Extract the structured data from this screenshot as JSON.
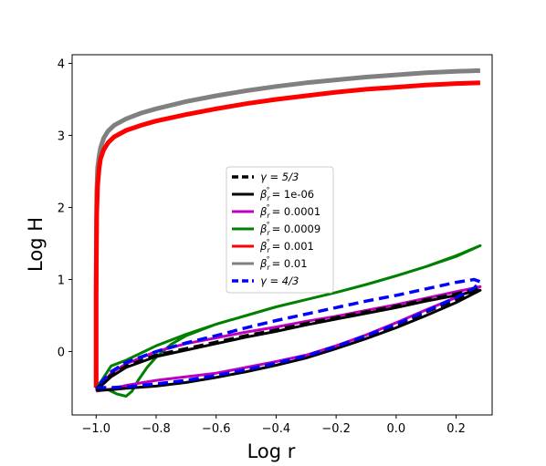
{
  "chart_data": {
    "type": "line",
    "xlabel": "Log r",
    "ylabel": "Log H",
    "xlim": [
      -1.08,
      0.32
    ],
    "ylim": [
      -0.88,
      4.12
    ],
    "xticks": [
      -1.0,
      -0.8,
      -0.6,
      -0.4,
      -0.2,
      0.0,
      0.2
    ],
    "xtick_labels": [
      "−1.0",
      "−0.8",
      "−0.6",
      "−0.4",
      "−0.2",
      "0.0",
      "0.2"
    ],
    "yticks": [
      0,
      1,
      2,
      3,
      4
    ],
    "ytick_labels": [
      "0",
      "1",
      "2",
      "3",
      "4"
    ],
    "grid": false,
    "legend_position": "center",
    "series": [
      {
        "name": "γ = 5/3",
        "legend_label": "γ = 5/3",
        "color": "#000000",
        "dashed": true,
        "x": [
          -1.0,
          -0.95,
          -0.9,
          -0.8,
          -0.7,
          -0.6,
          -0.5,
          -0.4,
          -0.3,
          -0.2,
          -0.1,
          0.0,
          0.1,
          0.2,
          0.28,
          0.2,
          0.1,
          0.0,
          -0.1,
          -0.2,
          -0.3,
          -0.4,
          -0.5,
          -0.6,
          -0.7,
          -0.8,
          -0.9,
          -0.95,
          -1.0
        ],
        "y": [
          -0.52,
          -0.52,
          -0.5,
          -0.47,
          -0.42,
          -0.35,
          -0.27,
          -0.18,
          -0.08,
          0.05,
          0.2,
          0.35,
          0.55,
          0.72,
          0.88,
          0.8,
          0.72,
          0.63,
          0.55,
          0.47,
          0.39,
          0.3,
          0.22,
          0.13,
          0.04,
          -0.05,
          -0.2,
          -0.33,
          -0.52
        ]
      },
      {
        "name": "β_r° = 1e-06",
        "legend_label": "= 1e-06",
        "color": "#000000",
        "dashed": false,
        "x": [
          -1.0,
          -0.95,
          -0.9,
          -0.8,
          -0.7,
          -0.6,
          -0.5,
          -0.4,
          -0.3,
          -0.2,
          -0.1,
          0.0,
          0.1,
          0.2,
          0.28,
          0.2,
          0.1,
          0.0,
          -0.1,
          -0.2,
          -0.3,
          -0.4,
          -0.5,
          -0.6,
          -0.7,
          -0.8,
          -0.9,
          -0.95,
          -1.0
        ],
        "y": [
          -0.54,
          -0.53,
          -0.51,
          -0.48,
          -0.43,
          -0.36,
          -0.28,
          -0.19,
          -0.09,
          0.04,
          0.18,
          0.33,
          0.5,
          0.68,
          0.85,
          0.78,
          0.7,
          0.61,
          0.53,
          0.45,
          0.37,
          0.28,
          0.2,
          0.11,
          0.02,
          -0.07,
          -0.22,
          -0.35,
          -0.54
        ]
      },
      {
        "name": "β_r° = 0.0001",
        "legend_label": "= 0.0001",
        "color": "#bf00bf",
        "dashed": false,
        "x": [
          -1.0,
          -0.95,
          -0.9,
          -0.8,
          -0.7,
          -0.6,
          -0.5,
          -0.4,
          -0.3,
          -0.2,
          -0.1,
          0.0,
          0.1,
          0.2,
          0.28,
          0.2,
          0.1,
          0.0,
          -0.1,
          -0.2,
          -0.3,
          -0.4,
          -0.5,
          -0.6,
          -0.7,
          -0.8,
          -0.9,
          -0.95,
          -1.0
        ],
        "y": [
          -0.55,
          -0.52,
          -0.47,
          -0.4,
          -0.35,
          -0.3,
          -0.22,
          -0.14,
          -0.05,
          0.08,
          0.23,
          0.4,
          0.58,
          0.75,
          0.9,
          0.83,
          0.74,
          0.65,
          0.57,
          0.49,
          0.42,
          0.34,
          0.27,
          0.19,
          0.11,
          0.0,
          -0.17,
          -0.3,
          -0.55
        ]
      },
      {
        "name": "β_r° = 0.0009",
        "legend_label": "= 0.0009",
        "color": "#008000",
        "dashed": false,
        "x": [
          -1.0,
          -0.96,
          -0.93,
          -0.9,
          -0.88,
          -0.86,
          -0.83,
          -0.8,
          -0.75,
          -0.7,
          -0.6,
          -0.5,
          -0.4,
          -0.3,
          -0.2,
          -0.1,
          0.0,
          0.1,
          0.2,
          0.28,
          0.2,
          0.1,
          0.0,
          -0.1,
          -0.2,
          -0.3,
          -0.4,
          -0.5,
          -0.6,
          -0.7,
          -0.8,
          -0.9,
          -0.95,
          -1.0
        ],
        "y": [
          -0.52,
          -0.53,
          -0.59,
          -0.62,
          -0.55,
          -0.4,
          -0.22,
          -0.08,
          0.1,
          0.22,
          0.38,
          0.5,
          0.62,
          0.72,
          0.82,
          0.93,
          1.05,
          1.18,
          1.32,
          1.47,
          1.33,
          1.18,
          1.05,
          0.93,
          0.82,
          0.72,
          0.62,
          0.5,
          0.38,
          0.24,
          0.08,
          -0.12,
          -0.2,
          -0.52
        ]
      },
      {
        "name": "β_r° = 0.001",
        "legend_label": "= 0.001",
        "color": "#ff0000",
        "dashed": false,
        "x": [
          -1.0,
          -1.0,
          -0.998,
          -0.995,
          -0.99,
          -0.985,
          -0.975,
          -0.96,
          -0.94,
          -0.9,
          -0.85,
          -0.8,
          -0.7,
          -0.6,
          -0.5,
          -0.4,
          -0.3,
          -0.2,
          -0.1,
          0.0,
          0.1,
          0.2,
          0.28
        ],
        "y": [
          -0.5,
          0.8,
          1.9,
          2.3,
          2.55,
          2.68,
          2.8,
          2.9,
          2.98,
          3.07,
          3.14,
          3.2,
          3.29,
          3.37,
          3.44,
          3.5,
          3.55,
          3.6,
          3.64,
          3.67,
          3.7,
          3.72,
          3.73
        ]
      },
      {
        "name": "β_r° = 0.01",
        "legend_label": "= 0.01",
        "color": "#808080",
        "dashed": false,
        "x": [
          -1.0,
          -1.0,
          -0.998,
          -0.995,
          -0.99,
          -0.985,
          -0.975,
          -0.96,
          -0.94,
          -0.9,
          -0.85,
          -0.8,
          -0.7,
          -0.6,
          -0.5,
          -0.4,
          -0.3,
          -0.2,
          -0.1,
          0.0,
          0.1,
          0.2,
          0.28
        ],
        "y": [
          -0.45,
          1.0,
          2.2,
          2.55,
          2.72,
          2.83,
          2.96,
          3.06,
          3.14,
          3.23,
          3.31,
          3.37,
          3.47,
          3.55,
          3.62,
          3.68,
          3.73,
          3.77,
          3.81,
          3.84,
          3.87,
          3.89,
          3.9
        ]
      },
      {
        "name": "γ = 4/3",
        "legend_label": "γ = 4/3",
        "color": "#0000ff",
        "dashed": true,
        "x": [
          -1.0,
          -0.95,
          -0.9,
          -0.8,
          -0.7,
          -0.6,
          -0.5,
          -0.4,
          -0.3,
          -0.2,
          -0.1,
          0.0,
          0.1,
          0.2,
          0.26,
          0.28,
          0.26,
          0.2,
          0.1,
          0.0,
          -0.1,
          -0.2,
          -0.3,
          -0.4,
          -0.5,
          -0.6,
          -0.7,
          -0.8,
          -0.9,
          -0.95,
          -1.0
        ],
        "y": [
          -0.5,
          -0.5,
          -0.49,
          -0.45,
          -0.4,
          -0.33,
          -0.25,
          -0.16,
          -0.06,
          0.07,
          0.22,
          0.38,
          0.56,
          0.75,
          0.88,
          0.97,
          1.0,
          0.96,
          0.87,
          0.78,
          0.7,
          0.61,
          0.52,
          0.43,
          0.33,
          0.22,
          0.12,
          0.0,
          -0.15,
          -0.28,
          -0.5
        ]
      }
    ]
  }
}
